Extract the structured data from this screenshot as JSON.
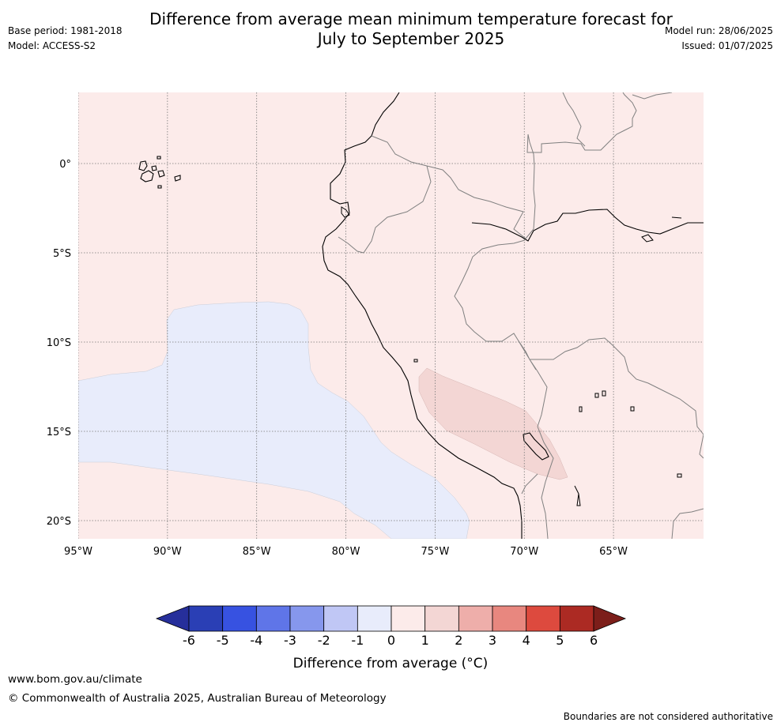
{
  "header": {
    "title_line1": "Difference from average mean minimum temperature forecast for",
    "title_line2": "July to September 2025",
    "base_period": "Base period: 1981-2018",
    "model": "Model: ACCESS-S2",
    "model_run": "Model run: 28/06/2025",
    "issued": "Issued: 01/07/2025"
  },
  "map": {
    "lat_labels": [
      "0°",
      "5°S",
      "10°S",
      "15°S",
      "20°S"
    ],
    "lon_labels": [
      "95°W",
      "90°W",
      "85°W",
      "80°W",
      "75°W",
      "70°W",
      "65°W"
    ],
    "lon_range": [
      -95,
      -60
    ],
    "lat_range": [
      -21,
      4
    ],
    "anomaly_regions": [
      {
        "category": "-1 to 0",
        "color": "#e8ecfb"
      },
      {
        "category": "0 to 1",
        "color": "#fcebea"
      },
      {
        "category": "1 to 2",
        "color": "#f3d6d4"
      }
    ]
  },
  "colorbar": {
    "ticks": [
      "-6",
      "-5",
      "-4",
      "-3",
      "-2",
      "-1",
      "0",
      "1",
      "2",
      "3",
      "4",
      "5",
      "6"
    ],
    "colors": [
      "#262f9b",
      "#2a3fb5",
      "#3752e1",
      "#5f75e8",
      "#8697ed",
      "#c0c7f5",
      "#e8ecfb",
      "#fcebea",
      "#f3d6d4",
      "#eeaeaa",
      "#e8877f",
      "#dd4a3e",
      "#ac2a23",
      "#7c1e1a"
    ],
    "label": "Difference from average (°C)"
  },
  "footer": {
    "url": "www.bom.gov.au/climate",
    "copyright": "© Commonwealth of Australia 2025, Australian Bureau of Meteorology",
    "disclaimer": "Boundaries are not considered authoritative"
  }
}
